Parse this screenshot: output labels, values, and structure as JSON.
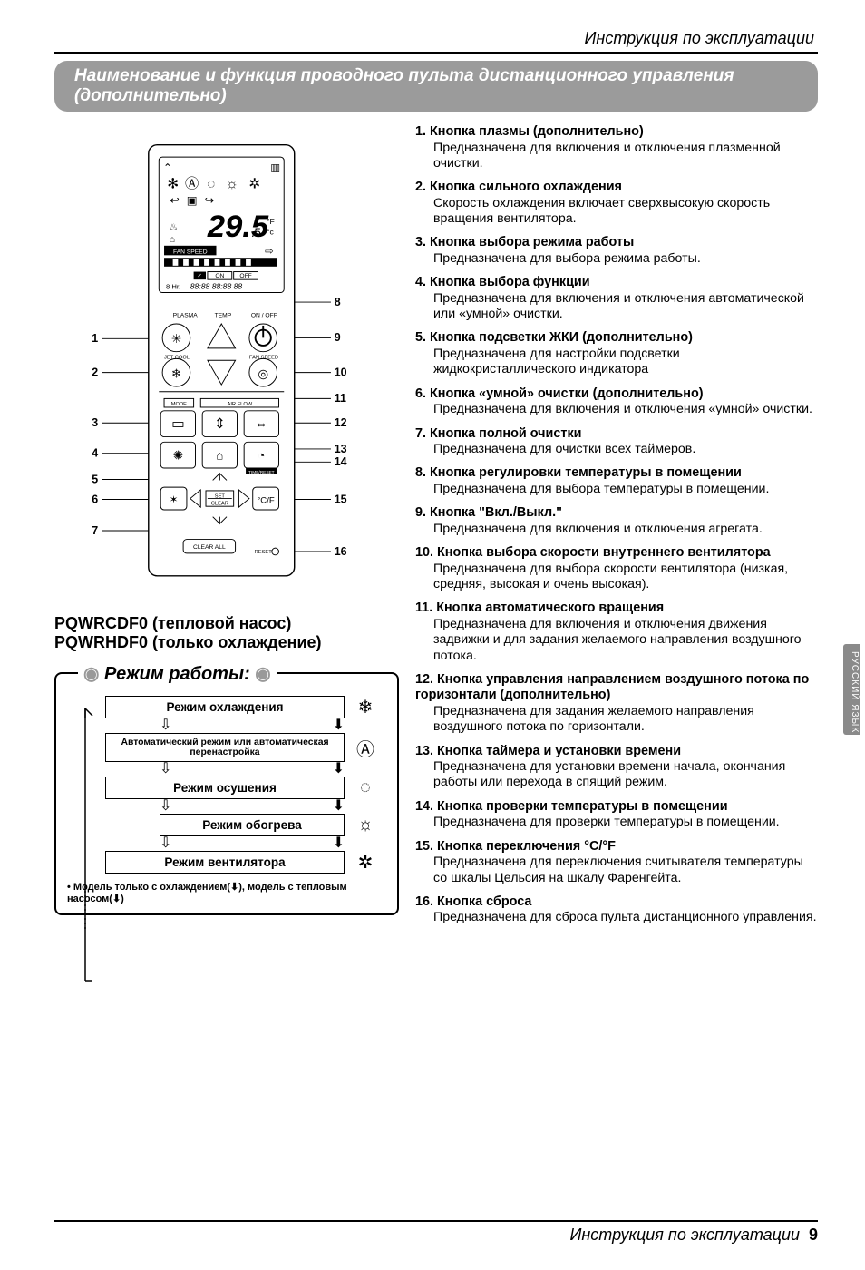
{
  "header": {
    "running_title": "Инструкция по эксплуатации",
    "section_title": "Наименование и функция проводного пульта дистанционного управления (дополнительно)"
  },
  "remote": {
    "display": {
      "temp": "29.5",
      "temp_unit_f": "°F",
      "temp_unit_c": "°c",
      "fan_speed_label": "FAN SPEED",
      "on_label": "ON",
      "off_label": "OFF",
      "timer_line": "8 Hr.",
      "timer_digits": "88:88 88:88 88"
    },
    "labels": {
      "plasma": "PLASMA",
      "temp_btn": "TEMP",
      "onoff": "ON / OFF",
      "jetcool": "JET COOL",
      "fanspeed": "FAN SPEED",
      "mode": "MODE",
      "airflow": "AIR FLOW",
      "setclear": "SET\nCLEAR",
      "clearall": "CLEAR ALL",
      "reset": "RESET"
    },
    "leader_numbers": [
      "1",
      "2",
      "3",
      "4",
      "5",
      "6",
      "7",
      "8",
      "9",
      "10",
      "11",
      "12",
      "13",
      "14",
      "15",
      "16"
    ]
  },
  "models": {
    "line1": "PQWRCDF0 (тепловой насос)",
    "line2": "PQWRHDF0 (только охлаждение)"
  },
  "mode_box": {
    "title": "Режим работы:",
    "rows": [
      {
        "label": "Режим охлаждения",
        "icon": "❄",
        "small": false
      },
      {
        "label": "Автоматический режим или автоматическая перенастройка",
        "icon": "Ⓐ",
        "small": true
      },
      {
        "label": "Режим осушения",
        "icon": "◌",
        "small": false
      },
      {
        "label": "Режим обогрева",
        "icon": "☼",
        "small": false,
        "indent": true
      },
      {
        "label": "Режим вентилятора",
        "icon": "✲",
        "small": false
      }
    ],
    "note_prefix": "• Модель только с охлаждением(",
    "note_mid": "), модель с тепловым насосом(",
    "note_suffix": ")"
  },
  "features": [
    {
      "n": "1.",
      "t": "Кнопка плазмы (дополнительно)",
      "d": "Предназначена для включения и отключения плазменной очистки."
    },
    {
      "n": "2.",
      "t": "Кнопка сильного охлаждения",
      "d": "Скорость охлаждения включает сверхвысокую скорость вращения вентилятора."
    },
    {
      "n": "3.",
      "t": "Кнопка выбора режима работы",
      "d": "Предназначена для выбора режима работы."
    },
    {
      "n": "4.",
      "t": "Кнопка выбора функции",
      "d": "Предназначена для включения и отключения автоматической или «умной» очистки."
    },
    {
      "n": "5.",
      "t": "Кнопка подсветки ЖКИ (дополнительно)",
      "d": "Предназначена для настройки подсветки жидкокристаллического индикатора"
    },
    {
      "n": "6.",
      "t": "Кнопка «умной» очистки (дополнительно)",
      "d": "Предназначена для включения и отключения «умной» очистки."
    },
    {
      "n": "7.",
      "t": "Кнопка полной очистки",
      "d": "Предназначена для очистки всех таймеров."
    },
    {
      "n": "8.",
      "t": "Кнопка регулировки температуры в помещении",
      "d": "Предназначена для выбора температуры в помещении."
    },
    {
      "n": "9.",
      "t": "Кнопка \"Вкл./Выкл.\"",
      "d": "Предназначена для включения и отключения агрегата."
    },
    {
      "n": "10.",
      "t": "Кнопка выбора скорости внутреннего вентилятора",
      "d": "Предназначена для выбора скорости вентилятора (низкая, средняя, высокая и очень высокая)."
    },
    {
      "n": "11.",
      "t": "Кнопка автоматического вращения",
      "d": "Предназначена для включения и отключения движения задвижки и для задания желаемого направления воздушного потока."
    },
    {
      "n": "12.",
      "t": "Кнопка управления направлением воздушного потока по горизонтали (дополнительно)",
      "d": "Предназначена для задания желаемого направления воздушного потока по горизонтали."
    },
    {
      "n": "13.",
      "t": "Кнопка таймера и установки времени",
      "d": "Предназначена для установки времени начала, окончания работы или перехода в спящий режим."
    },
    {
      "n": "14.",
      "t": "Кнопка проверки температуры в помещении",
      "d": "Предназначена для проверки температуры в помещении."
    },
    {
      "n": "15.",
      "t": "Кнопка переключения °C/°F",
      "d": "Предназначена для переключения считывателя температуры со шкалы Цельсия на шкалу Фаренгейта."
    },
    {
      "n": "16.",
      "t": "Кнопка сброса",
      "d": "Предназначена для сброса пульта дистанционного управления."
    }
  ],
  "side_tab": "РУССКИЙ ЯЗЫК",
  "footer": {
    "text": "Инструкция по эксплуатации",
    "page": "9"
  },
  "style": {
    "title_bg": "#9b9b9b",
    "side_bg": "#8a8a8a"
  }
}
